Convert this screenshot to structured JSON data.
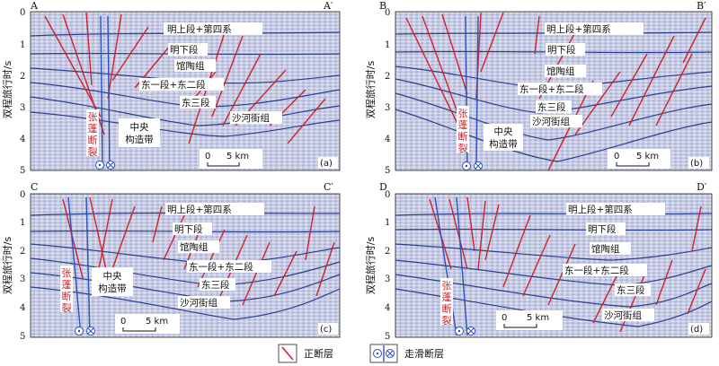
{
  "panels": [
    {
      "id": "a",
      "corner_left": "A",
      "corner_right": "A′",
      "panel_tag": "(a)",
      "y_axis_label": "双程旅行时/s",
      "y_ticks": [
        "0",
        "1",
        "2",
        "3",
        "4",
        "5"
      ],
      "scale_label": "5 km",
      "scale_zero": "0",
      "fault_name": "张蓬断裂",
      "structure": "中央\n构造带",
      "strata": [
        "明上段+第四系",
        "明下段",
        "馆陶组",
        "东一段+东二段",
        "东三段",
        "沙河街组"
      ]
    },
    {
      "id": "b",
      "corner_left": "B",
      "corner_right": "B′",
      "panel_tag": "(b)",
      "y_axis_label": "双程旅行时/s",
      "y_ticks": [
        "0",
        "1",
        "2",
        "3",
        "4",
        "5"
      ],
      "scale_label": "5 km",
      "scale_zero": "0",
      "fault_name": "张蓬断裂",
      "structure": "中央\n构造带",
      "strata": [
        "明上段+第四系",
        "明下段",
        "馆陶组",
        "东一段+东二段",
        "东三段",
        "沙河街组"
      ]
    },
    {
      "id": "c",
      "corner_left": "C",
      "corner_right": "C′",
      "panel_tag": "(c)",
      "y_axis_label": "双程旅行时/s",
      "y_ticks": [
        "0",
        "1",
        "2",
        "3",
        "4",
        "5"
      ],
      "scale_label": "5 km",
      "scale_zero": "0",
      "fault_name": "张蓬断裂",
      "structure": "中央\n构造带",
      "strata": [
        "明上段+第四系",
        "明下段",
        "馆陶组",
        "东一段+东二段",
        "东三段",
        "沙河街组"
      ]
    },
    {
      "id": "d",
      "corner_left": "D",
      "corner_right": "D′",
      "panel_tag": "(d)",
      "y_axis_label": "双程旅行时/s",
      "y_ticks": [
        "0",
        "1",
        "2",
        "3",
        "4",
        "5"
      ],
      "scale_label": "5 km",
      "scale_zero": "0",
      "fault_name": "张蓬断裂",
      "structure": "",
      "strata": [
        "明上段+第四系",
        "明下段",
        "馆陶组",
        "东一段+东二段",
        "东三段",
        "沙河街组"
      ]
    }
  ],
  "legend": {
    "normal_fault": "正断层",
    "strike_slip_fault": "走滑断层"
  },
  "colors": {
    "seismic_bg": "#c9cde3",
    "reflector": "#2a3f8c",
    "normal_fault": "#d0202a",
    "strike_slip_fault": "#2a52b8"
  }
}
